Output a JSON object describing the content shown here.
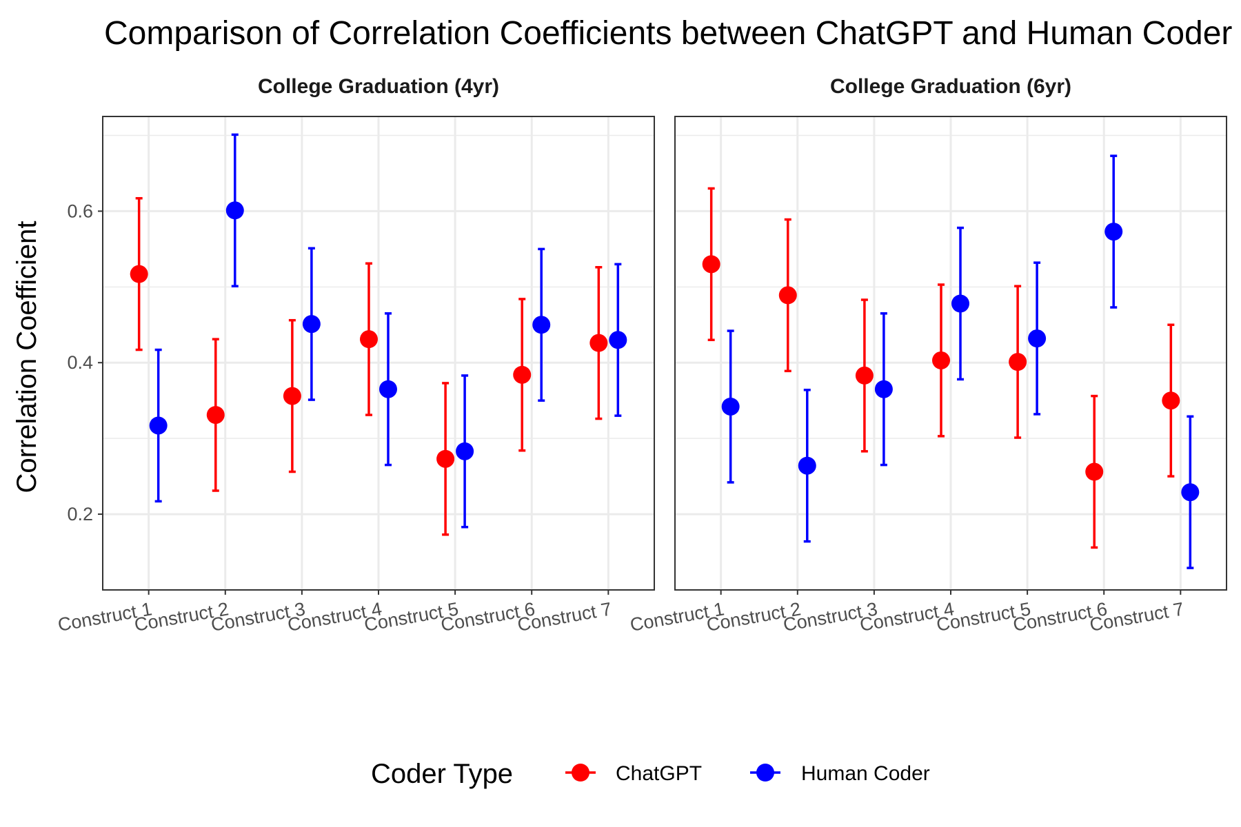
{
  "chart_data": {
    "type": "scatter",
    "title": "Comparison of Correlation Coefficients between ChatGPT and Human Coder",
    "ylabel": "Correlation Coefficient",
    "xlabel": "",
    "ylim": [
      0.1,
      0.725
    ],
    "y_ticks": [
      0.2,
      0.4,
      0.6
    ],
    "y_tick_labels": [
      "0.2",
      "0.4",
      "0.6"
    ],
    "grid": true,
    "categories": [
      "Construct 1",
      "Construct 2",
      "Construct 3",
      "Construct 4",
      "Construct 5",
      "Construct 6",
      "Construct 7"
    ],
    "legend": {
      "title": "Coder Type",
      "position": "bottom",
      "entries": [
        "ChatGPT",
        "Human Coder"
      ]
    },
    "colors": {
      "ChatGPT": "#ff0000",
      "Human Coder": "#0000ff"
    },
    "panels": [
      {
        "title": "College Graduation (4yr)",
        "series": [
          {
            "name": "ChatGPT",
            "values": [
              0.517,
              0.331,
              0.356,
              0.431,
              0.273,
              0.384,
              0.426
            ],
            "lower": [
              0.417,
              0.231,
              0.256,
              0.331,
              0.173,
              0.284,
              0.326
            ],
            "upper": [
              0.617,
              0.431,
              0.456,
              0.531,
              0.373,
              0.484,
              0.526
            ]
          },
          {
            "name": "Human Coder",
            "values": [
              0.317,
              0.601,
              0.451,
              0.365,
              0.283,
              0.45,
              0.43
            ],
            "lower": [
              0.217,
              0.501,
              0.351,
              0.265,
              0.183,
              0.35,
              0.33
            ],
            "upper": [
              0.417,
              0.701,
              0.551,
              0.465,
              0.383,
              0.55,
              0.53
            ]
          }
        ]
      },
      {
        "title": "College Graduation (6yr)",
        "series": [
          {
            "name": "ChatGPT",
            "values": [
              0.53,
              0.489,
              0.383,
              0.403,
              0.401,
              0.256,
              0.35
            ],
            "lower": [
              0.43,
              0.389,
              0.283,
              0.303,
              0.301,
              0.156,
              0.25
            ],
            "upper": [
              0.63,
              0.589,
              0.483,
              0.503,
              0.501,
              0.356,
              0.45
            ]
          },
          {
            "name": "Human Coder",
            "values": [
              0.342,
              0.264,
              0.365,
              0.478,
              0.432,
              0.573,
              0.229
            ],
            "lower": [
              0.242,
              0.164,
              0.265,
              0.378,
              0.332,
              0.473,
              0.129
            ],
            "upper": [
              0.442,
              0.364,
              0.465,
              0.578,
              0.532,
              0.673,
              0.329
            ]
          }
        ]
      }
    ]
  }
}
